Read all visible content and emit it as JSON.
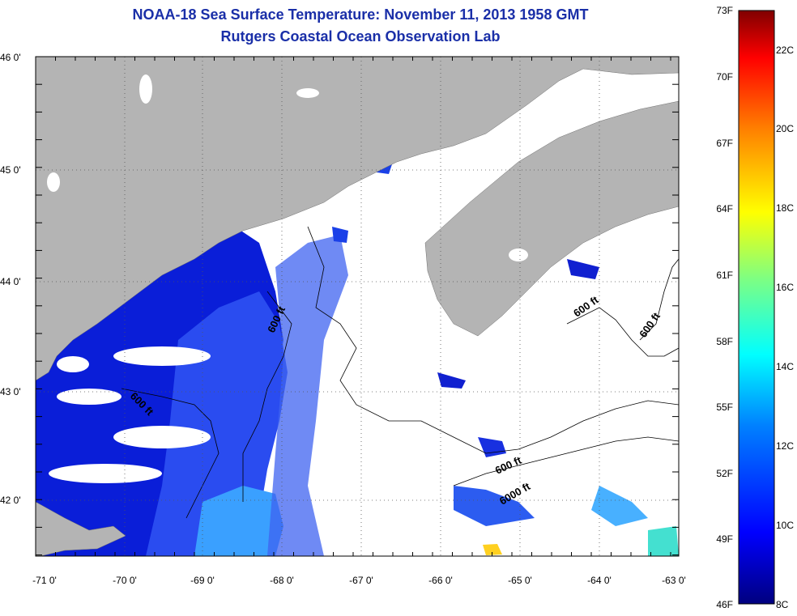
{
  "title": "NOAA-18 Sea Surface Temperature:  November 11, 2013 1958 GMT",
  "subtitle": "Rutgers Coastal Ocean Observation Lab",
  "lat_ticks": [
    "46 0'",
    "45 0'",
    "44 0'",
    "43 0'",
    "42 0'"
  ],
  "lon_ticks": [
    "-71 0'",
    "-70 0'",
    "-69 0'",
    "-68 0'",
    "-67 0'",
    "-66 0'",
    "-65 0'",
    "-64 0'",
    "-63 0'"
  ],
  "colorbar": {
    "f_labels": [
      "73F",
      "70F",
      "67F",
      "64F",
      "61F",
      "58F",
      "55F",
      "52F",
      "49F",
      "46F"
    ],
    "c_labels": [
      "22C",
      "20C",
      "18C",
      "16C",
      "14C",
      "12C",
      "10C",
      "8C"
    ]
  },
  "contours": [
    "600 ft",
    "600 ft",
    "600 ft",
    "600 ft",
    "600 ft",
    "6000 ft"
  ],
  "colors": {
    "land": "#b4b4b4",
    "cold": "#0000c8",
    "mid": "#2040ff",
    "warm": "#40c0ff",
    "title": "#1a2fa8"
  }
}
